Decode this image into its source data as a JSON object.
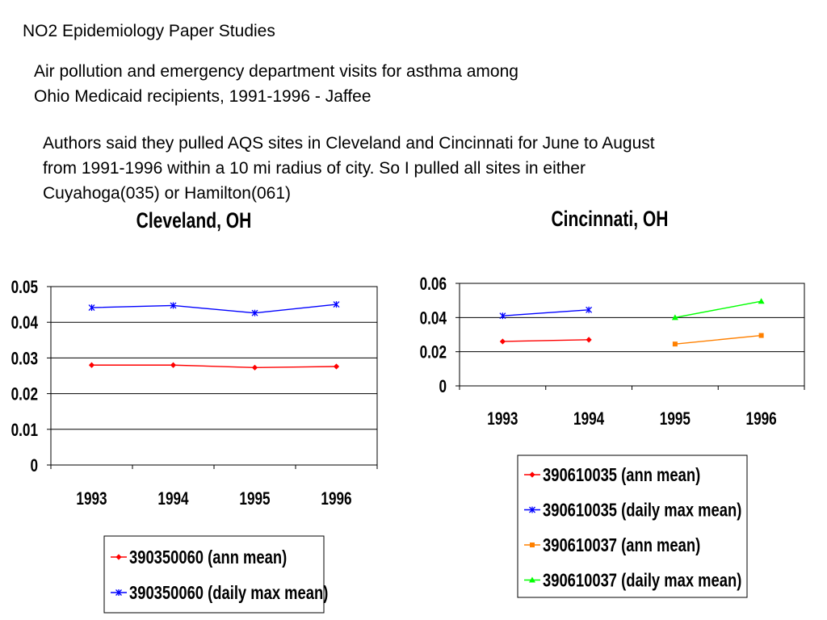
{
  "slide": {
    "title": "NO2 Epidemiology Paper Studies",
    "paper_title_lines": [
      "Air pollution and emergency department visits for asthma among",
      "Ohio Medicaid recipients, 1991-1996 - Jaffee"
    ],
    "notes_lines": [
      "Authors said they pulled AQS sites in Cleveland and Cincinnati for June to August",
      "from 1991-1996 within a 10 mi radius of city.  So I pulled all sites in either",
      "Cuyahoga(035) or Hamilton(061)"
    ]
  },
  "chart_data": [
    {
      "type": "line",
      "title": "Cleveland, OH",
      "categories": [
        "1993",
        "1994",
        "1995",
        "1996"
      ],
      "ylim": [
        0,
        0.05
      ],
      "yticks": [
        "0",
        "0.01",
        "0.02",
        "0.03",
        "0.04",
        "0.05"
      ],
      "grid": true,
      "legend": "bottom",
      "series": [
        {
          "name": "390350060 (ann mean)",
          "color": "#ff0000",
          "marker": "diamond",
          "values": [
            0.028,
            0.028,
            0.0273,
            0.0276
          ]
        },
        {
          "name": "390350060 (daily max mean)",
          "color": "#0000ff",
          "marker": "star",
          "values": [
            0.0441,
            0.0447,
            0.0426,
            0.045
          ]
        }
      ]
    },
    {
      "type": "line",
      "title": "Cincinnati, OH",
      "categories": [
        "1993",
        "1994",
        "1995",
        "1996"
      ],
      "ylim": [
        0,
        0.06
      ],
      "yticks": [
        "0",
        "0.02",
        "0.04",
        "0.06"
      ],
      "grid": true,
      "legend": "bottom",
      "series": [
        {
          "name": "390610035 (ann mean)",
          "color": "#ff0000",
          "marker": "diamond",
          "values": [
            0.026,
            0.027,
            null,
            null
          ]
        },
        {
          "name": "390610035 (daily max mean)",
          "color": "#0000ff",
          "marker": "star",
          "values": [
            0.041,
            0.0445,
            null,
            null
          ]
        },
        {
          "name": "390610037 (ann mean)",
          "color": "#ff8000",
          "marker": "square",
          "values": [
            null,
            null,
            0.0245,
            0.0295
          ]
        },
        {
          "name": "390610037 (daily max mean)",
          "color": "#00ff00",
          "marker": "triangle",
          "values": [
            null,
            null,
            0.04,
            0.0495
          ]
        }
      ]
    }
  ]
}
